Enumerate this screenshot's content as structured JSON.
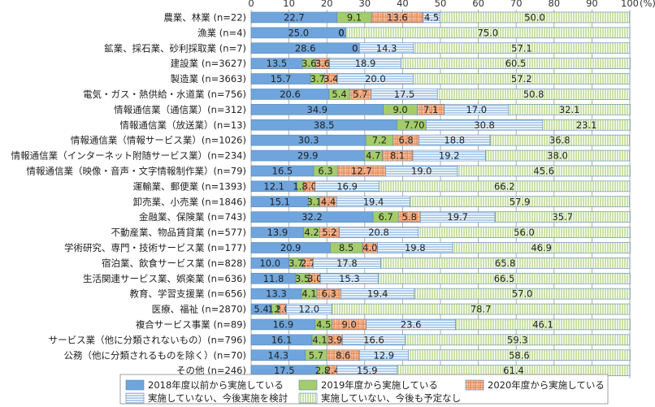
{
  "chart_data": {
    "type": "bar",
    "orientation": "horizontal",
    "stacked": true,
    "normalized": true,
    "x_unit": "(%)",
    "xlim": [
      0,
      100
    ],
    "x_ticks": [
      "0",
      "10",
      "20",
      "30",
      "40",
      "50",
      "60",
      "70",
      "80",
      "90",
      "100"
    ],
    "grid": true,
    "legend_position": "bottom",
    "categories": [
      "農業、林業 (n=22)",
      "漁業 (n=4)",
      "鉱業、採石業、砂利採取業 (n=7)",
      "建設業 (n=3627)",
      "製造業 (n=3663)",
      "電気・ガス・熱供給・水道業 (n=756)",
      "情報通信業（通信業）(n=312)",
      "情報通信業（放送業）(n=13)",
      "情報通信業（情報サービス業）(n=1026)",
      "情報通信業（インターネット附随サービス業）(n=234)",
      "情報通信業（映像・音声・文字情報制作業）(n=79)",
      "運輸業、郵便業 (n=1393)",
      "卸売業、小売業 (n=1846)",
      "金融業、保険業 (n=743)",
      "不動産業、物品賃貸業 (n=577)",
      "学術研究、専門・技術サービス業 (n=177)",
      "宿泊業、飲食サービス業 (n=828)",
      "生活関連サービス業、娯楽業 (n=636)",
      "教育、学習支援業 (n=656)",
      "医療、福祉 (n=2870)",
      "複合サービス事業 (n=89)",
      "サービス業（他に分類されないもの）(n=796)",
      "公務（他に分類されるものを除く）(n=70)",
      "その他 (n=246)"
    ],
    "series": [
      {
        "name": "2018年度以前から実施している",
        "color": "#6fa5dc",
        "pattern": "solid",
        "values": [
          22.7,
          25.0,
          28.6,
          13.5,
          15.7,
          20.6,
          34.9,
          38.5,
          30.3,
          29.9,
          16.5,
          12.1,
          15.1,
          32.2,
          13.9,
          20.9,
          10.0,
          11.8,
          13.3,
          5.4,
          16.9,
          16.1,
          14.3,
          17.5
        ]
      },
      {
        "name": "2019年度から実施している",
        "color": "#a4cc6a",
        "pattern": "solid",
        "values": [
          9.1,
          0.0,
          0.0,
          3.6,
          3.7,
          5.4,
          9.0,
          7.7,
          7.2,
          4.7,
          6.3,
          1.8,
          3.1,
          6.7,
          4.2,
          8.5,
          3.7,
          3.5,
          4.1,
          1.9,
          4.5,
          4.1,
          5.7,
          2.8
        ]
      },
      {
        "name": "2020年度から実施している",
        "color": "#f0a67c",
        "pattern": "check",
        "values": [
          13.6,
          0.0,
          0.0,
          3.6,
          3.4,
          5.7,
          7.1,
          0.0,
          6.8,
          8.1,
          12.7,
          3.0,
          4.4,
          5.8,
          5.2,
          4.0,
          2.7,
          3.0,
          6.3,
          2.0,
          9.0,
          3.9,
          8.6,
          2.4
        ]
      },
      {
        "name": "実施していない、今後実施を検討",
        "color": "#6fa5dc",
        "pattern": "hlines",
        "values": [
          4.5,
          0.0,
          14.3,
          18.9,
          20.0,
          17.5,
          17.0,
          30.8,
          18.8,
          19.2,
          19.0,
          16.9,
          19.4,
          19.7,
          20.8,
          19.8,
          17.8,
          15.3,
          19.4,
          12.0,
          23.6,
          16.6,
          12.9,
          15.9
        ]
      },
      {
        "name": "実施していない、今後も予定なし",
        "color": "#a4cc6a",
        "pattern": "vlines",
        "values": [
          50.0,
          75.0,
          57.1,
          60.5,
          57.2,
          50.8,
          32.1,
          23.1,
          36.8,
          38.0,
          45.6,
          66.2,
          57.9,
          35.7,
          56.0,
          46.9,
          65.8,
          66.5,
          57.0,
          78.7,
          46.1,
          59.3,
          58.6,
          61.4
        ]
      }
    ]
  }
}
